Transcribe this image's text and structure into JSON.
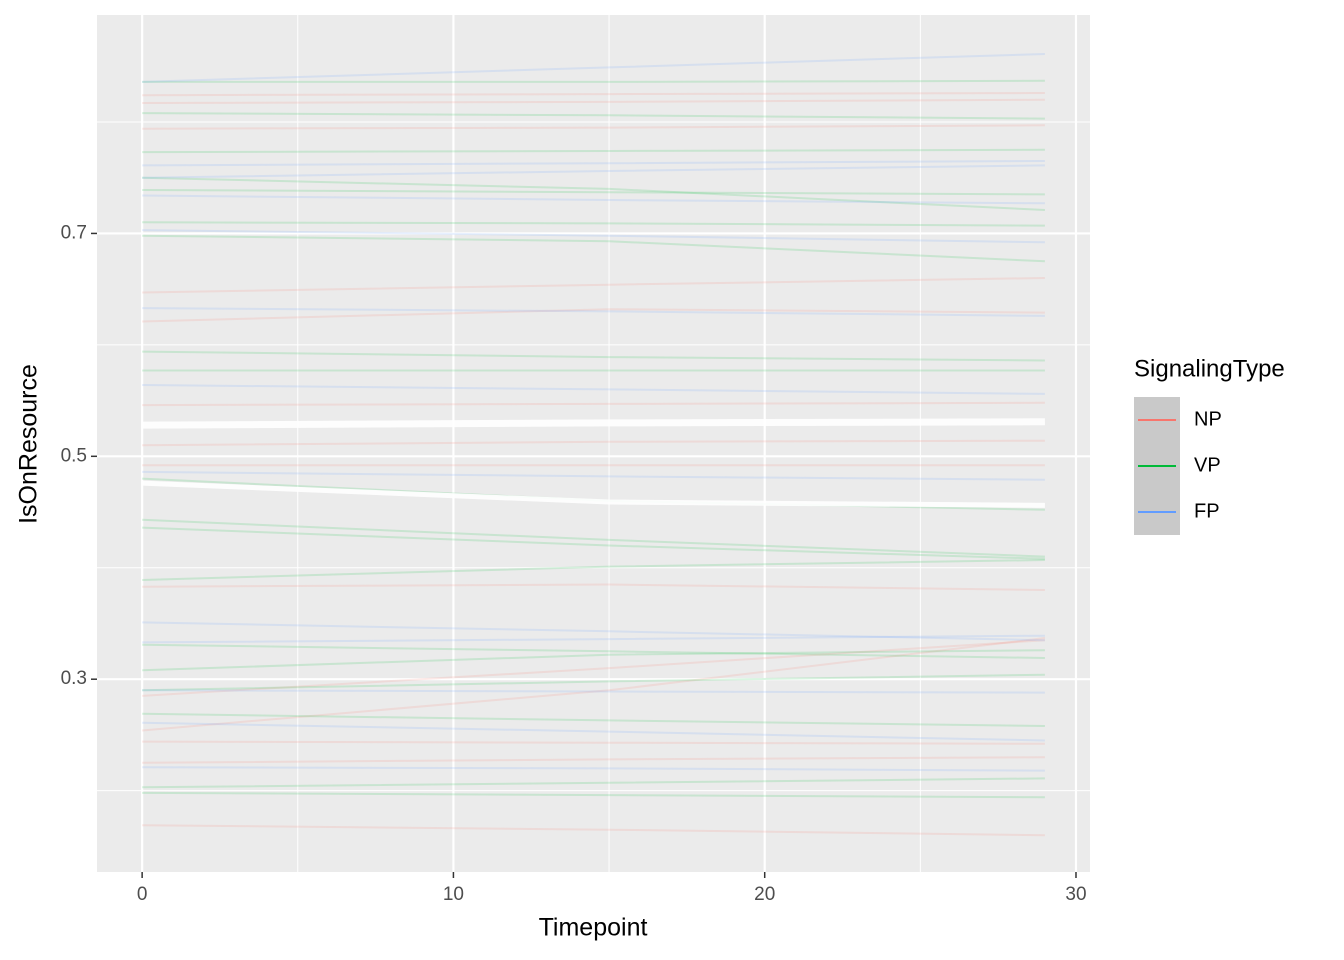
{
  "chart_data": {
    "type": "line",
    "x_label": "Timepoint",
    "y_label": "IsOnResource",
    "legend_title": "SignalingType",
    "legend_position": "right",
    "x": [
      0,
      15,
      29
    ],
    "xlim": [
      -1.45,
      30.45
    ],
    "xticks": [
      0,
      10,
      20,
      30
    ],
    "x_minor_ticks": [
      5,
      15,
      25
    ],
    "ylim": [
      0.127,
      0.896
    ],
    "yticks": [
      0.3,
      0.5,
      0.7
    ],
    "y_minor_ticks": [
      0.2,
      0.4,
      0.6,
      0.8
    ],
    "grid": true,
    "line_alpha": 0.15,
    "series": [
      {
        "name": "NP",
        "color": "#F8766D",
        "lines": [
          [
            0.824,
            0.825,
            0.826
          ],
          [
            0.817,
            0.818,
            0.82
          ],
          [
            0.794,
            0.795,
            0.797
          ],
          [
            0.647,
            0.654,
            0.66
          ],
          [
            0.621,
            0.632,
            0.629
          ],
          [
            0.546,
            0.547,
            0.548
          ],
          [
            0.51,
            0.513,
            0.514
          ],
          [
            0.492,
            0.492,
            0.492
          ],
          [
            0.383,
            0.385,
            0.38
          ],
          [
            0.285,
            0.31,
            0.335
          ],
          [
            0.254,
            0.29,
            0.337
          ],
          [
            0.244,
            0.243,
            0.242
          ],
          [
            0.225,
            0.228,
            0.23
          ],
          [
            0.169,
            0.165,
            0.16
          ]
        ]
      },
      {
        "name": "VP",
        "color": "#00BA38",
        "lines": [
          [
            0.836,
            0.836,
            0.837
          ],
          [
            0.808,
            0.806,
            0.803
          ],
          [
            0.773,
            0.774,
            0.775
          ],
          [
            0.739,
            0.737,
            0.735
          ],
          [
            0.75,
            0.74,
            0.721
          ],
          [
            0.71,
            0.709,
            0.707
          ],
          [
            0.698,
            0.693,
            0.675
          ],
          [
            0.594,
            0.589,
            0.586
          ],
          [
            0.577,
            0.577,
            0.577
          ],
          [
            0.48,
            0.46,
            0.452
          ],
          [
            0.443,
            0.425,
            0.41
          ],
          [
            0.436,
            0.42,
            0.408
          ],
          [
            0.389,
            0.401,
            0.407
          ],
          [
            0.308,
            0.322,
            0.326
          ],
          [
            0.331,
            0.325,
            0.319
          ],
          [
            0.29,
            0.298,
            0.304
          ],
          [
            0.269,
            0.263,
            0.258
          ],
          [
            0.203,
            0.207,
            0.211
          ],
          [
            0.198,
            0.196,
            0.194
          ]
        ]
      },
      {
        "name": "FP",
        "color": "#619CFF",
        "lines": [
          [
            0.836,
            0.849,
            0.861
          ],
          [
            0.761,
            0.763,
            0.765
          ],
          [
            0.75,
            0.756,
            0.761
          ],
          [
            0.734,
            0.73,
            0.727
          ],
          [
            0.703,
            0.698,
            0.692
          ],
          [
            0.633,
            0.63,
            0.626
          ],
          [
            0.564,
            0.56,
            0.556
          ],
          [
            0.486,
            0.482,
            0.479
          ],
          [
            0.351,
            0.343,
            0.335
          ],
          [
            0.333,
            0.336,
            0.339
          ],
          [
            0.29,
            0.289,
            0.288
          ],
          [
            0.261,
            0.253,
            0.245
          ],
          [
            0.221,
            0.22,
            0.218
          ]
        ]
      }
    ],
    "summary_lines": [
      {
        "color": "#ffffff",
        "width": 7,
        "values": [
          0.528,
          0.53,
          0.531
        ]
      },
      {
        "color": "#ffffff",
        "width": 5,
        "values": [
          0.476,
          0.459,
          0.456
        ]
      }
    ]
  }
}
